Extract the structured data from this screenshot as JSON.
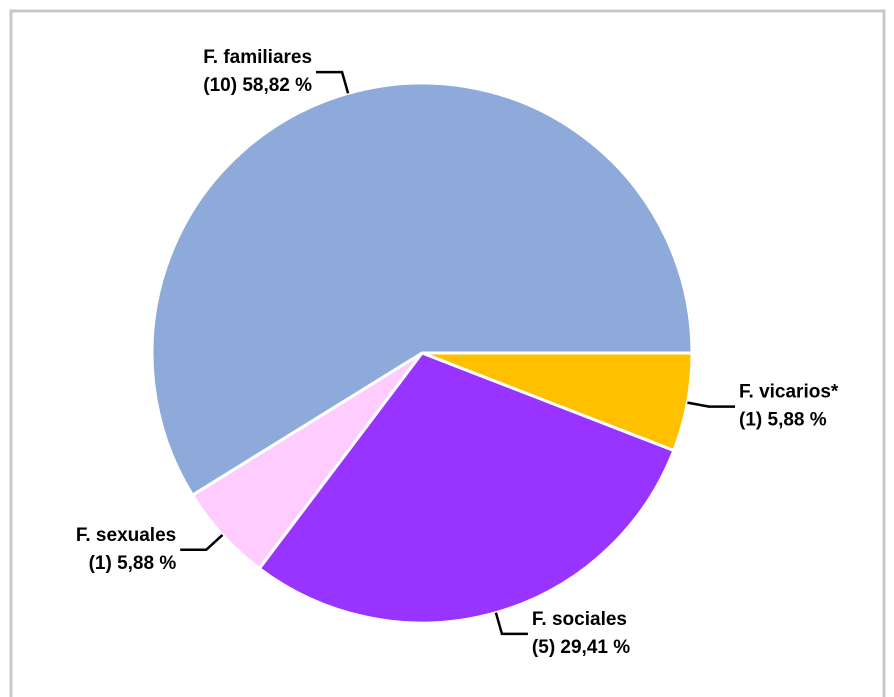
{
  "chart_data": {
    "type": "pie",
    "categories": [
      "F. vicarios*",
      "F. sociales",
      "F. sexuales",
      "F. familiares"
    ],
    "values": [
      5.88,
      29.41,
      5.88,
      58.82
    ],
    "value_labels": [
      "(1) 5,88 %",
      "(5) 29,41 %",
      "(1) 5,88 %",
      "(10) 58,82 %"
    ],
    "colors": [
      "#ffc000",
      "#9933ff",
      "#ffccff",
      "#8eaadb"
    ]
  }
}
